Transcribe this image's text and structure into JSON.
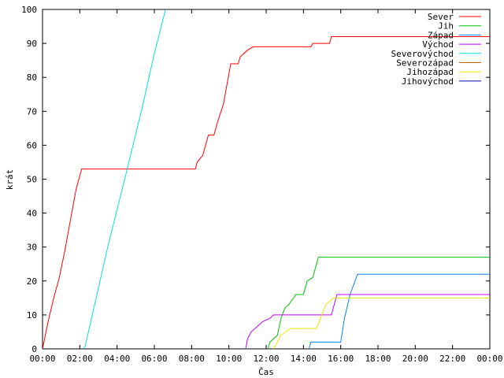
{
  "chart_data": {
    "type": "line",
    "xlabel": "Čas",
    "ylabel": "krát",
    "xlim": [
      0,
      24
    ],
    "ylim": [
      0,
      100
    ],
    "grid": false,
    "legend": "top-right",
    "x_tick_labels": [
      "00:00",
      "02:00",
      "04:00",
      "06:00",
      "08:00",
      "10:00",
      "12:00",
      "14:00",
      "16:00",
      "18:00",
      "20:00",
      "22:00",
      "00:00"
    ],
    "y_ticks": [
      0,
      10,
      20,
      30,
      40,
      50,
      60,
      70,
      80,
      90,
      100
    ],
    "series": [
      {
        "name": "Sever",
        "color": "#ff0000",
        "points": [
          [
            0,
            0
          ],
          [
            0.3,
            8
          ],
          [
            0.6,
            15
          ],
          [
            0.9,
            21
          ],
          [
            1.2,
            29
          ],
          [
            1.5,
            38
          ],
          [
            1.8,
            47
          ],
          [
            2.1,
            53
          ],
          [
            8.2,
            53
          ],
          [
            8.3,
            55
          ],
          [
            8.6,
            57
          ],
          [
            8.9,
            63
          ],
          [
            9.2,
            63
          ],
          [
            9.4,
            67
          ],
          [
            9.7,
            72
          ],
          [
            9.9,
            78
          ],
          [
            10.1,
            84
          ],
          [
            10.5,
            84
          ],
          [
            10.6,
            86
          ],
          [
            11.0,
            88
          ],
          [
            11.3,
            89
          ],
          [
            14.4,
            89
          ],
          [
            14.5,
            90
          ],
          [
            15.4,
            90
          ],
          [
            15.5,
            92
          ],
          [
            24,
            92
          ]
        ]
      },
      {
        "name": "Jih",
        "color": "#00c000",
        "points": [
          [
            12.1,
            0
          ],
          [
            12.2,
            2
          ],
          [
            12.6,
            4
          ],
          [
            12.8,
            9
          ],
          [
            13.0,
            12
          ],
          [
            13.2,
            13
          ],
          [
            13.6,
            16
          ],
          [
            14.0,
            16
          ],
          [
            14.2,
            20
          ],
          [
            14.5,
            21
          ],
          [
            14.7,
            25
          ],
          [
            14.8,
            27
          ],
          [
            24,
            27
          ]
        ]
      },
      {
        "name": "Západ",
        "color": "#0080ff",
        "points": [
          [
            14.3,
            0
          ],
          [
            14.4,
            2
          ],
          [
            16.0,
            2
          ],
          [
            16.2,
            9
          ],
          [
            16.5,
            16
          ],
          [
            16.9,
            22
          ],
          [
            24,
            22
          ]
        ]
      },
      {
        "name": "Východ",
        "color": "#c000ff",
        "points": [
          [
            10.9,
            0
          ],
          [
            11.0,
            3
          ],
          [
            11.2,
            5
          ],
          [
            11.4,
            6
          ],
          [
            11.8,
            8
          ],
          [
            12.2,
            9
          ],
          [
            12.4,
            10
          ],
          [
            15.5,
            10
          ],
          [
            15.8,
            16
          ],
          [
            24,
            16
          ]
        ]
      },
      {
        "name": "Severovýchod",
        "color": "#00e0e0",
        "points": [
          [
            2.2,
            0
          ],
          [
            2.3,
            1
          ],
          [
            3.5,
            30
          ],
          [
            4.5,
            52
          ],
          [
            5.3,
            70
          ],
          [
            6.0,
            87
          ],
          [
            6.6,
            100
          ]
        ]
      },
      {
        "name": "Severozápad",
        "color": "#c06000",
        "points": []
      },
      {
        "name": "Jihozápad",
        "color": "#e8e800",
        "points": [
          [
            12.4,
            0
          ],
          [
            12.6,
            2
          ],
          [
            12.8,
            4
          ],
          [
            13.3,
            6
          ],
          [
            14.7,
            6
          ],
          [
            15.2,
            13
          ],
          [
            15.6,
            15
          ],
          [
            24,
            15
          ]
        ]
      },
      {
        "name": "Jihovýchod",
        "color": "#0000c0",
        "points": []
      }
    ]
  }
}
